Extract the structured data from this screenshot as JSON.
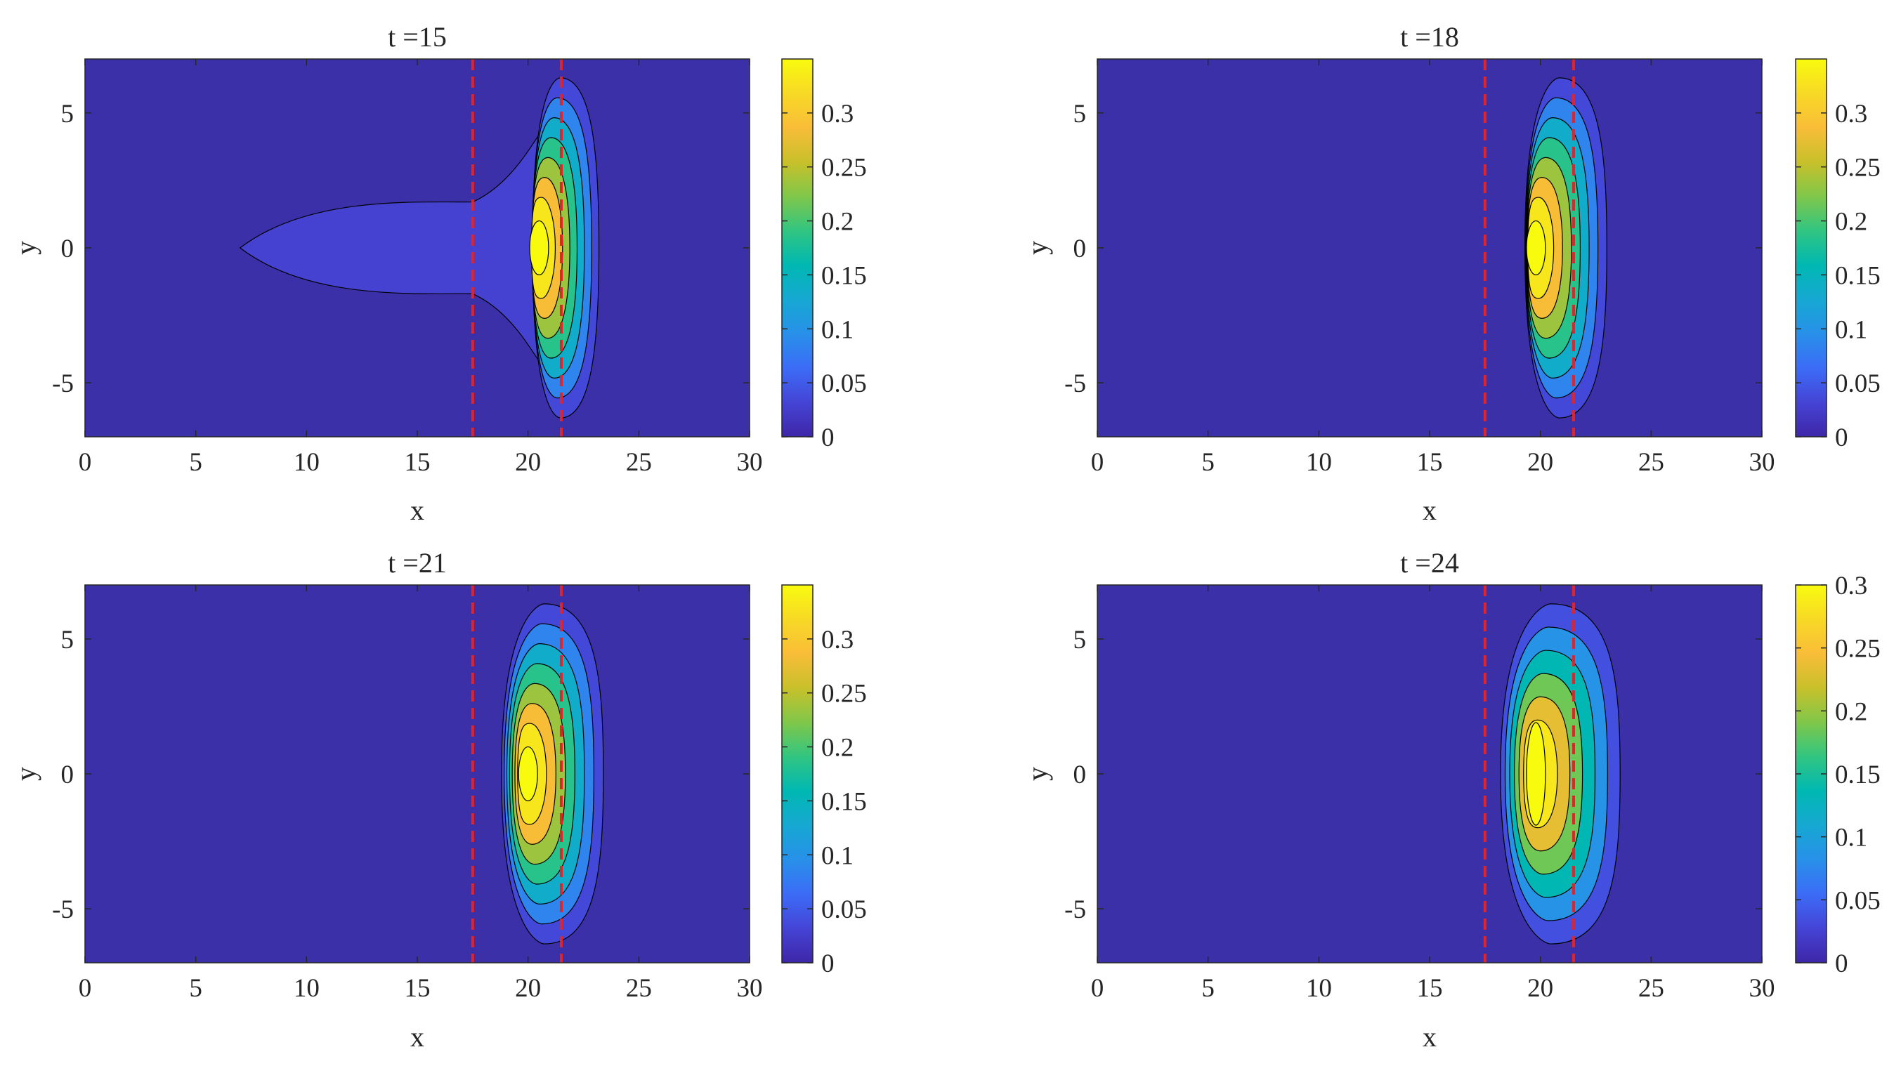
{
  "colors": {
    "marker_line": "#e0242a",
    "contour_line": "#000000",
    "background_level": "#3b30a8",
    "colormap_stops": [
      "#3e26a8",
      "#4544d5",
      "#3c6cf7",
      "#2890e9",
      "#16a8d2",
      "#00b8b2",
      "#31c581",
      "#80c74a",
      "#c8c02a",
      "#f9bd38",
      "#f7d925",
      "#f9fb0e"
    ]
  },
  "chart_data": [
    {
      "type": "contour",
      "title": "t =15",
      "xlabel": "x",
      "ylabel": "y",
      "xlim": [
        0,
        30
      ],
      "ylim": [
        -7,
        7
      ],
      "xticks": [
        "0",
        "5",
        "10",
        "15",
        "20",
        "25",
        "30"
      ],
      "yticks": [
        "-5",
        "0",
        "5"
      ],
      "marker_lines_x": [
        17.5,
        21.5
      ],
      "colorbar": {
        "range": [
          0,
          0.35
        ],
        "ticks": [
          "0",
          "0.05",
          "0.1",
          "0.15",
          "0.2",
          "0.25",
          "0.3"
        ]
      },
      "contour_levels": [
        0.05,
        0.1,
        0.15,
        0.2,
        0.25,
        0.3
      ],
      "peak": {
        "x": 20.5,
        "y": 0,
        "value": 0.34
      },
      "tail": {
        "x_start": 7,
        "x_end": 17.5,
        "half_width": 1.7,
        "value": 0.03
      }
    },
    {
      "type": "contour",
      "title": "t =18",
      "xlabel": "x",
      "ylabel": "y",
      "xlim": [
        0,
        30
      ],
      "ylim": [
        -7,
        7
      ],
      "xticks": [
        "0",
        "5",
        "10",
        "15",
        "20",
        "25",
        "30"
      ],
      "yticks": [
        "-5",
        "0",
        "5"
      ],
      "marker_lines_x": [
        17.5,
        21.5
      ],
      "colorbar": {
        "range": [
          0,
          0.35
        ],
        "ticks": [
          "0",
          "0.05",
          "0.1",
          "0.15",
          "0.2",
          "0.25",
          "0.3"
        ]
      },
      "contour_levels": [
        0.05,
        0.1,
        0.15,
        0.2,
        0.25,
        0.3
      ],
      "peak": {
        "x": 19.8,
        "y": 0,
        "value": 0.34
      }
    },
    {
      "type": "contour",
      "title": "t =21",
      "xlabel": "x",
      "ylabel": "y",
      "xlim": [
        0,
        30
      ],
      "ylim": [
        -7,
        7
      ],
      "xticks": [
        "0",
        "5",
        "10",
        "15",
        "20",
        "25",
        "30"
      ],
      "yticks": [
        "-5",
        "0",
        "5"
      ],
      "marker_lines_x": [
        17.5,
        21.5
      ],
      "colorbar": {
        "range": [
          0,
          0.35
        ],
        "ticks": [
          "0",
          "0.05",
          "0.1",
          "0.15",
          "0.2",
          "0.25",
          "0.3"
        ]
      },
      "contour_levels": [
        0.05,
        0.1,
        0.15,
        0.2,
        0.25,
        0.3
      ],
      "peak": {
        "x": 20,
        "y": 0,
        "value": 0.34
      }
    },
    {
      "type": "contour",
      "title": "t =24",
      "xlabel": "x",
      "ylabel": "y",
      "xlim": [
        0,
        30
      ],
      "ylim": [
        -7,
        7
      ],
      "xticks": [
        "0",
        "5",
        "10",
        "15",
        "20",
        "25",
        "30"
      ],
      "yticks": [
        "-5",
        "0",
        "5"
      ],
      "marker_lines_x": [
        17.5,
        21.5
      ],
      "colorbar": {
        "range": [
          0,
          0.3
        ],
        "ticks": [
          "0",
          "0.05",
          "0.1",
          "0.15",
          "0.2",
          "0.25",
          "0.3"
        ]
      },
      "contour_levels": [
        0.05,
        0.1,
        0.15,
        0.2,
        0.25
      ],
      "peak": {
        "x": 19.8,
        "y": 0,
        "value": 0.3
      }
    }
  ]
}
